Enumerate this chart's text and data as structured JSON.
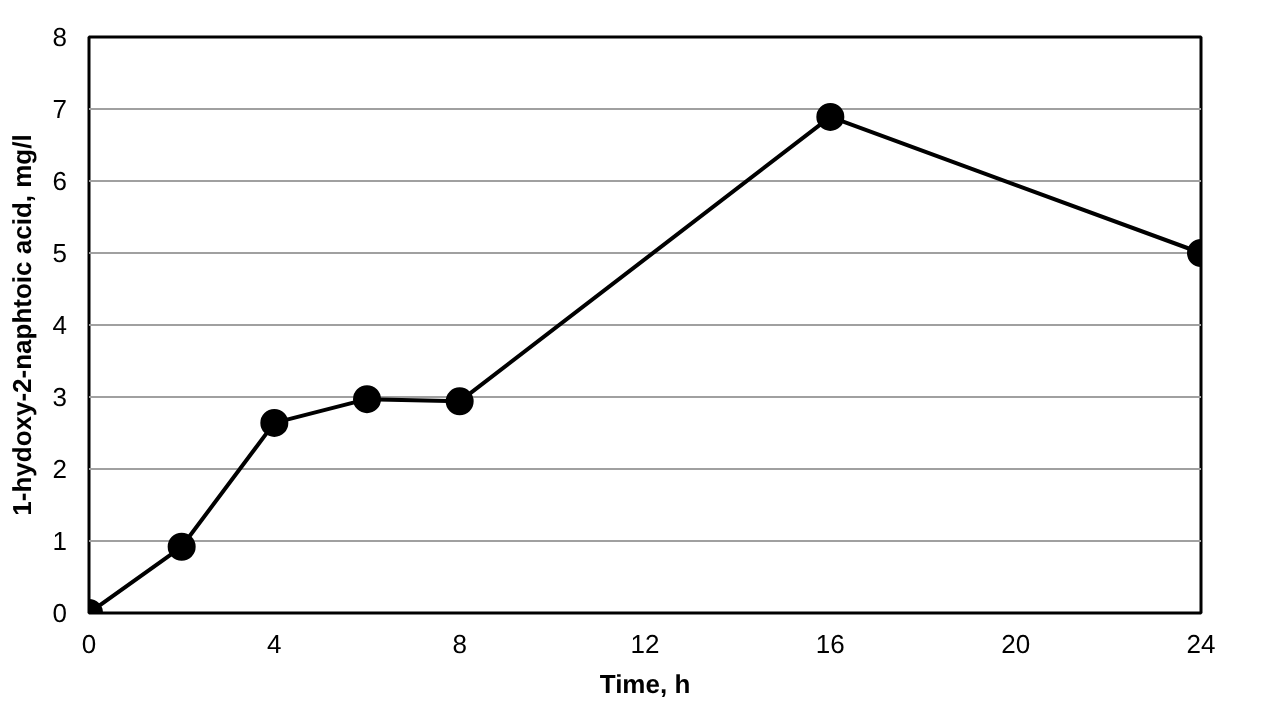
{
  "chart_data": {
    "type": "line",
    "xlabel": "Time, h",
    "ylabel": "1-hydoxy-2-naphtoic acid, mg/l",
    "x": [
      0,
      2,
      4,
      6,
      8,
      16,
      24
    ],
    "series": [
      {
        "color": "#000000",
        "values": [
          0,
          0.92,
          2.64,
          2.97,
          2.94,
          6.89,
          5.0
        ]
      }
    ],
    "xlim": [
      0,
      24
    ],
    "xticks": [
      0,
      4,
      8,
      12,
      16,
      20,
      24
    ],
    "ylim": [
      0,
      8
    ],
    "yticks": [
      0,
      1,
      2,
      3,
      4,
      5,
      6,
      7,
      8
    ],
    "grid": "y",
    "marker": "circle",
    "line_style": "solid"
  }
}
